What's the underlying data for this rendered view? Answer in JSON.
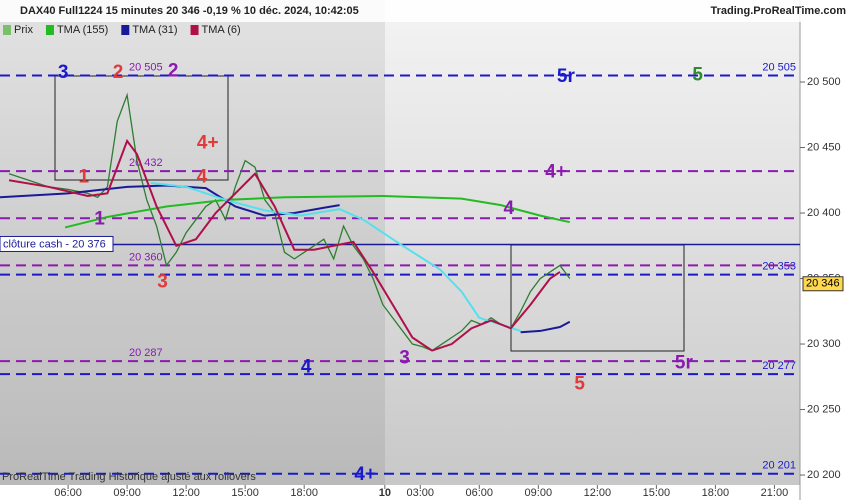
{
  "chart_data": {
    "type": "line",
    "title": "DAX40 Full1224 15 minutes 20 346 -0,19 % 10 déc. 2024, 10:42:05",
    "source": "Trading.ProRealTime.com",
    "footer": "ProRealTime Trading  Historique ajusté aux rollovers",
    "xlim": [
      2.54,
      43.2
    ],
    "ylim": [
      20192.4,
      20562.6
    ],
    "xticks": [
      {
        "value": 6,
        "label": "06:00"
      },
      {
        "value": 9,
        "label": "09:00"
      },
      {
        "value": 12,
        "label": "12:00"
      },
      {
        "value": 15,
        "label": "15:00"
      },
      {
        "value": 18,
        "label": "18:00"
      },
      {
        "value": 22.1,
        "label": "10"
      },
      {
        "value": 23.9,
        "label": "03:00"
      },
      {
        "value": 26.9,
        "label": "06:00"
      },
      {
        "value": 29.9,
        "label": "09:00"
      },
      {
        "value": 32.9,
        "label": "12:00"
      },
      {
        "value": 35.9,
        "label": "15:00"
      },
      {
        "value": 38.9,
        "label": "18:00"
      },
      {
        "value": 41.9,
        "label": "21:00"
      }
    ],
    "yticks": [
      {
        "value": 20200,
        "label": "20 200"
      },
      {
        "value": 20250,
        "label": "20 250"
      },
      {
        "value": 20300,
        "label": "20 300"
      },
      {
        "value": 20350,
        "label": "20 350"
      },
      {
        "value": 20400,
        "label": "20 400"
      },
      {
        "value": 20450,
        "label": "20 450"
      },
      {
        "value": 20500,
        "label": "20 500"
      }
    ],
    "series": [
      {
        "name": "Prix",
        "color": "#2e7d32",
        "legend_color": "#7bbf6a",
        "x": [
          3,
          4,
          5,
          6,
          7,
          7.5,
          8,
          8.5,
          9,
          9.5,
          10,
          10.5,
          11,
          11.5,
          12,
          12.5,
          13,
          13.5,
          14,
          14.5,
          15,
          15.5,
          16,
          16.5,
          17,
          17.5,
          18,
          18.5,
          19,
          19.5,
          20,
          20.5,
          21,
          21.5,
          22,
          22.5,
          23,
          23.5,
          24,
          24.5,
          25,
          25.5,
          26,
          26.5,
          27,
          27.5,
          28,
          28.5,
          29,
          29.5,
          30,
          30.5,
          31,
          31.5
        ],
        "values": [
          20430,
          20425,
          20420,
          20418,
          20415,
          20412,
          20420,
          20470,
          20490,
          20440,
          20410,
          20390,
          20360,
          20370,
          20385,
          20395,
          20405,
          20410,
          20395,
          20420,
          20440,
          20435,
          20410,
          20400,
          20370,
          20365,
          20370,
          20375,
          20380,
          20365,
          20390,
          20375,
          20365,
          20350,
          20330,
          20320,
          20310,
          20300,
          20298,
          20295,
          20300,
          20305,
          20310,
          20318,
          20315,
          20320,
          20315,
          20312,
          20325,
          20340,
          20350,
          20355,
          20360,
          20350
        ]
      },
      {
        "name": "TMA (155)",
        "color": "#22bb22",
        "x": [
          5.85,
          8,
          11,
          14,
          17,
          22,
          26,
          28,
          30,
          31.5
        ],
        "values": [
          20389,
          20397,
          20405,
          20410,
          20412,
          20413,
          20411,
          20406,
          20398,
          20393
        ]
      },
      {
        "name": "TMA (31)",
        "color": "#1a1a99",
        "x": [
          2.5,
          6,
          9,
          11,
          13,
          14.5,
          16,
          17.5,
          19,
          19.8,
          20.5,
          29,
          30,
          31,
          31.5
        ],
        "values": [
          20412,
          20415,
          20420,
          20421,
          20419,
          20405,
          20398,
          20400,
          20404,
          20406,
          null,
          20309,
          20310,
          20313,
          20317
        ]
      },
      {
        "color": "#55e0ee",
        "x": [
          10.2,
          12,
          14,
          16,
          17.8,
          19.8,
          21,
          22.9,
          24.9,
          26,
          26.9,
          29
        ],
        "values": [
          20423,
          20420,
          20410,
          20402,
          20398,
          20403,
          20395,
          20376,
          20357,
          20340,
          20320,
          20310
        ]
      },
      {
        "name": "TMA (6)",
        "color": "#b0104a",
        "x": [
          3,
          5,
          7,
          8,
          9,
          9.5,
          10.5,
          11.5,
          12.5,
          13.5,
          14.5,
          15.5,
          16.5,
          17.5,
          18.5,
          19.5,
          20.5,
          21.5,
          22.5,
          23.5,
          24.5,
          25.5,
          26.5,
          27.5,
          28.5,
          29.5,
          30.5,
          31
        ],
        "values": [
          20425,
          20420,
          20413,
          20415,
          20455,
          20445,
          20405,
          20375,
          20380,
          20400,
          20415,
          20430,
          20405,
          20372,
          20372,
          20375,
          20378,
          20355,
          20330,
          20305,
          20295,
          20300,
          20312,
          20318,
          20312,
          20330,
          20350,
          20355
        ]
      }
    ],
    "levels": [
      {
        "value": 20505,
        "color": "#1a1acc",
        "label_left": "20 505",
        "label_right": "20 505"
      },
      {
        "value": 20353,
        "color": "#1a1acc",
        "label_right": "20 353"
      },
      {
        "value": 20277,
        "color": "#1a1acc",
        "label_right": "20 277"
      },
      {
        "value": 20201,
        "color": "#1a1acc",
        "label_right": "20 201"
      },
      {
        "value": 20432,
        "color": "#8a1ab0",
        "label_left": "20 432"
      },
      {
        "value": 20396,
        "color": "#8a1ab0"
      },
      {
        "value": 20360,
        "color": "#8a1ab0",
        "label_left": "20 360"
      },
      {
        "value": 20287,
        "color": "#8a1ab0",
        "label_left": "20 287"
      }
    ],
    "cash_close": {
      "value": 20376,
      "label": "clôture cash - 20 376"
    },
    "last_price": {
      "value": 20346,
      "label": "20 346"
    },
    "annotations": [
      {
        "text": "3",
        "x": 5.75,
        "y": 20507,
        "color": "#1a1acc"
      },
      {
        "text": "2",
        "x": 8.54,
        "y": 20507,
        "color": "#e03a3a"
      },
      {
        "text": "2",
        "x": 11.34,
        "y": 20508,
        "color": "#8a1ab0"
      },
      {
        "text": "4+",
        "x": 13.1,
        "y": 20453,
        "color": "#e03a3a"
      },
      {
        "text": "1",
        "x": 6.8,
        "y": 20427,
        "color": "#e03a3a"
      },
      {
        "text": "4",
        "x": 12.8,
        "y": 20427,
        "color": "#e03a3a"
      },
      {
        "text": "1",
        "x": 7.6,
        "y": 20395,
        "color": "#8a1ab0"
      },
      {
        "text": "3",
        "x": 10.8,
        "y": 20347,
        "color": "#e03a3a"
      },
      {
        "text": "5r",
        "x": 31.3,
        "y": 20504,
        "color": "#1a1acc"
      },
      {
        "text": "5",
        "x": 38.0,
        "y": 20505,
        "color": "#2e8b2e"
      },
      {
        "text": "4+",
        "x": 30.8,
        "y": 20431,
        "color": "#8a1ab0"
      },
      {
        "text": "4",
        "x": 28.4,
        "y": 20403,
        "color": "#8a1ab0"
      },
      {
        "text": "4",
        "x": 18.1,
        "y": 20282,
        "color": "#1a1acc"
      },
      {
        "text": "3",
        "x": 23.1,
        "y": 20289,
        "color": "#8a1ab0"
      },
      {
        "text": "5",
        "x": 32.0,
        "y": 20269,
        "color": "#e03a3a"
      },
      {
        "text": "5r",
        "x": 37.3,
        "y": 20285,
        "color": "#8a1ab0"
      },
      {
        "text": "4+",
        "x": 21.1,
        "y": 20200,
        "color": "#1a1acc"
      }
    ]
  }
}
